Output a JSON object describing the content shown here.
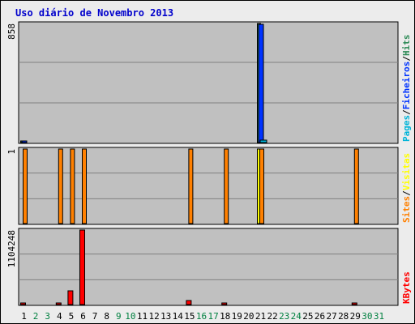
{
  "title": "Uso diário de Novembro 2013",
  "colors": {
    "pages": "#00b4d8",
    "files": "#0033ff",
    "hits": "#2e8b57",
    "sites": "#ff8000",
    "visits": "#ffff00",
    "kbytes": "#ff0000",
    "plot_bg": "#c0c0c0",
    "weekday": "#000000",
    "weekend": "#008040"
  },
  "chart_data": {
    "type": "bar",
    "days": [
      1,
      2,
      3,
      4,
      5,
      6,
      7,
      8,
      9,
      10,
      11,
      12,
      13,
      14,
      15,
      16,
      17,
      18,
      19,
      20,
      21,
      22,
      23,
      24,
      25,
      26,
      27,
      28,
      29,
      30,
      31
    ],
    "weekend_days": [
      2,
      3,
      9,
      10,
      16,
      17,
      23,
      24,
      30,
      31
    ],
    "panels": [
      {
        "id": "hits",
        "scale_label": "858",
        "ymax": 858,
        "right_label": [
          {
            "text": "Pages",
            "color_key": "pages"
          },
          {
            "text": "/",
            "color_key": "weekday"
          },
          {
            "text": "Ficheiros",
            "color_key": "files"
          },
          {
            "text": "/",
            "color_key": "weekday"
          },
          {
            "text": "Hits",
            "color_key": "hits"
          }
        ],
        "series": [
          {
            "key": "hits",
            "values": [
              12,
              0,
              0,
              0,
              0,
              0,
              0,
              0,
              0,
              0,
              0,
              0,
              0,
              0,
              0,
              0,
              0,
              0,
              0,
              0,
              858,
              0,
              0,
              0,
              0,
              0,
              0,
              0,
              0,
              0,
              0
            ]
          },
          {
            "key": "files",
            "values": [
              12,
              0,
              0,
              0,
              0,
              0,
              0,
              0,
              0,
              0,
              0,
              0,
              0,
              0,
              0,
              0,
              0,
              0,
              0,
              0,
              850,
              0,
              0,
              0,
              0,
              0,
              0,
              0,
              0,
              0,
              0
            ]
          },
          {
            "key": "pages",
            "values": [
              0,
              0,
              0,
              0,
              0,
              0,
              0,
              0,
              0,
              0,
              0,
              0,
              0,
              0,
              0,
              0,
              0,
              0,
              0,
              0,
              15,
              0,
              0,
              0,
              0,
              0,
              0,
              0,
              0,
              0,
              0
            ]
          }
        ]
      },
      {
        "id": "visits",
        "scale_label": "1",
        "ymax": 1,
        "right_label": [
          {
            "text": "Sites",
            "color_key": "sites"
          },
          {
            "text": "/",
            "color_key": "weekday"
          },
          {
            "text": "Visitas",
            "color_key": "visits"
          }
        ],
        "series": [
          {
            "key": "visits",
            "values": [
              0,
              0,
              0,
              0,
              0,
              0,
              0,
              0,
              0,
              0,
              0,
              0,
              0,
              0,
              0,
              0,
              0,
              0,
              0,
              0,
              1,
              0,
              0,
              0,
              0,
              0,
              0,
              0,
              0,
              0,
              0
            ]
          },
          {
            "key": "sites",
            "values": [
              1,
              0,
              0,
              1,
              1,
              1,
              0,
              0,
              0,
              0,
              0,
              0,
              0,
              0,
              1,
              0,
              0,
              1,
              0,
              0,
              1,
              0,
              0,
              0,
              0,
              0,
              0,
              0,
              1,
              0,
              0
            ]
          }
        ]
      },
      {
        "id": "kbytes",
        "scale_label": "1104248",
        "ymax": 1104248,
        "right_label": [
          {
            "text": "KBytes",
            "color_key": "kbytes"
          }
        ],
        "series": [
          {
            "key": "kbytes",
            "values": [
              500,
              0,
              0,
              500,
              200000,
              1104248,
              0,
              0,
              0,
              0,
              0,
              0,
              0,
              0,
              60000,
              0,
              0,
              500,
              0,
              0,
              0,
              0,
              0,
              0,
              0,
              0,
              0,
              0,
              500,
              0,
              0
            ]
          }
        ]
      }
    ]
  }
}
